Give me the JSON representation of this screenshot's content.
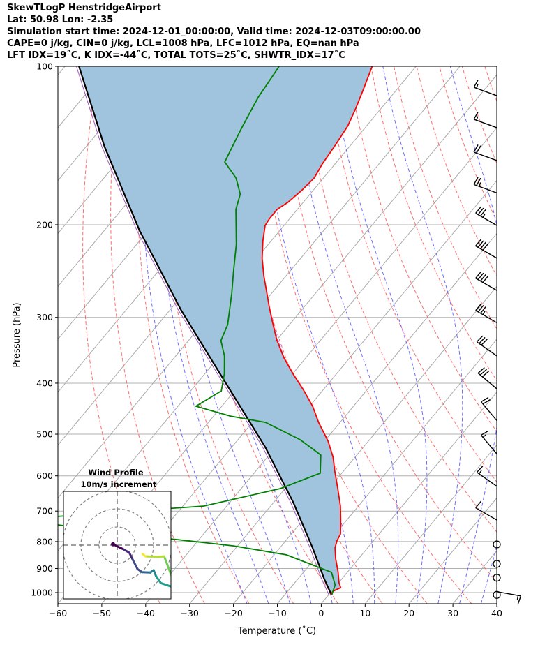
{
  "header": {
    "line1": "SkewTLogP HenstridgeAirport",
    "line2": "Lat: 50.98   Lon: -2.35",
    "line3": "Simulation start time: 2024-12-01_00:00:00, Valid time: 2024-12-03T09:00:00.00",
    "line4": "CAPE=0 j/kg, CIN=0 j/kg, LCL=1008 hPa, LFC=1012 hPa, EQ=nan hPa",
    "line5": "LFT IDX=19˚C, K IDX=-44˚C, TOTAL TOTS=25˚C, SHWTR_IDX=17˚C"
  },
  "chart_data": {
    "type": "line",
    "title": "SkewTLogP HenstridgeAirport",
    "xlabel": "Temperature (˚C)",
    "ylabel": "Pressure (hPa)",
    "xlim": [
      -60,
      40
    ],
    "ylim": [
      1050,
      100
    ],
    "x_ticks": [
      "−60",
      "−50",
      "−40",
      "−30",
      "−20",
      "−10",
      "0",
      "10",
      "20",
      "30",
      "40"
    ],
    "x_tick_values": [
      -60,
      -50,
      -40,
      -30,
      -20,
      -10,
      0,
      10,
      20,
      30,
      40
    ],
    "y_ticks": [
      "100",
      "200",
      "300",
      "400",
      "500",
      "600",
      "700",
      "800",
      "900",
      "1000"
    ],
    "y_tick_values": [
      100,
      200,
      300,
      400,
      500,
      600,
      700,
      800,
      900,
      1000
    ],
    "grid": true,
    "colors": {
      "temperature": "#ff0000",
      "dewpoint": "#008000",
      "parcel": "#000000",
      "cape_fill": "#a0c4de",
      "isotherm": "#aaaaaa",
      "dry_adiabat": "#ff5555",
      "moist_adiabat": "#5555ff"
    },
    "background_lines": {
      "isotherms_c": {
        "start": -200,
        "stop": 40,
        "step": 10
      },
      "dry_adiabats_theta_c": {
        "start": -40,
        "stop": 200,
        "step": 10
      },
      "moist_adiabats_t1000_c": {
        "start": -20,
        "stop": 40,
        "step": 5
      }
    },
    "series": [
      {
        "name": "Temperature",
        "p": [
          100,
          111.3,
          120.1,
          129.7,
          141.2,
          153.4,
          163,
          172.2,
          181.4,
          187,
          194.6,
          200.6,
          214.6,
          231.5,
          250,
          269.8,
          286.9,
          304.9,
          331.1,
          357.4,
          383.4,
          411.3,
          442.5,
          474.8,
          515.4,
          553.1,
          587.6,
          634.5,
          684.7,
          727.8,
          773.8,
          798,
          822.6,
          861,
          915.1,
          958.2,
          978.8,
          993.8,
          1009.2
        ],
        "t": [
          -90,
          -87.5,
          -85.8,
          -84.3,
          -83.5,
          -82.9,
          -82.1,
          -82.6,
          -83.5,
          -84.6,
          -84.6,
          -84.3,
          -81.9,
          -78.8,
          -75.1,
          -71.1,
          -67.9,
          -64.6,
          -60,
          -55.1,
          -50,
          -44.6,
          -39.3,
          -34.9,
          -29.2,
          -25,
          -22,
          -18,
          -14.1,
          -11.4,
          -8.8,
          -8.3,
          -7.4,
          -5.3,
          -2.1,
          0.1,
          1.4,
          0.3,
          0.4
        ]
      },
      {
        "name": "Dewpoint",
        "p": [
          100,
          114.7,
          131.6,
          152,
          163,
          174.9,
          187,
          217.9,
          246.1,
          269.8,
          309.6,
          332.1,
          355.1,
          383.4,
          413.8,
          442.5,
          461.9,
          474.8,
          512.3,
          548,
          593.1,
          634.5,
          684.7,
          716.7,
          730,
          743.6,
          790.6,
          815.2,
          847.6,
          915.1,
          967,
          1009.2
        ],
        "t": [
          -111.2,
          -110.1,
          -108,
          -105.5,
          -99.9,
          -95.9,
          -94,
          -87.3,
          -82.7,
          -79.1,
          -74.1,
          -72.6,
          -68.9,
          -65.6,
          -63,
          -65.9,
          -56.2,
          -47,
          -35.8,
          -28.2,
          -24.9,
          -31.1,
          -45.2,
          -76.5,
          -110,
          -74.9,
          -46.5,
          -30.9,
          -17.2,
          -3.6,
          -0.4,
          0.7
        ]
      },
      {
        "name": "Parcel",
        "p": [
          100,
          142.1,
          205,
          291.2,
          401.3,
          528.2,
          674.4,
          822.6,
          943.6,
          1009.2
        ],
        "t": [
          -156.8,
          -135.8,
          -112,
          -87.3,
          -63.2,
          -42.5,
          -25.5,
          -12.5,
          -3.9,
          0.6
        ]
      }
    ],
    "wind_barbs": [
      {
        "p": 113.7,
        "dir": 290,
        "spd": 15
      },
      {
        "p": 130.8,
        "dir": 290,
        "spd": 15
      },
      {
        "p": 151,
        "dir": 290,
        "spd": 20
      },
      {
        "p": 174,
        "dir": 290,
        "spd": 25
      },
      {
        "p": 200.6,
        "dir": 300,
        "spd": 35
      },
      {
        "p": 231.5,
        "dir": 300,
        "spd": 40
      },
      {
        "p": 266.6,
        "dir": 300,
        "spd": 40
      },
      {
        "p": 307,
        "dir": 300,
        "spd": 35
      },
      {
        "p": 355,
        "dir": 305,
        "spd": 30
      },
      {
        "p": 410,
        "dir": 310,
        "spd": 30
      },
      {
        "p": 471,
        "dir": 320,
        "spd": 20
      },
      {
        "p": 545,
        "dir": 320,
        "spd": 15
      },
      {
        "p": 628,
        "dir": 305,
        "spd": 15
      },
      {
        "p": 728,
        "dir": 300,
        "spd": 10
      },
      {
        "p": 810,
        "dir": 0,
        "spd": 0
      },
      {
        "p": 882,
        "dir": 0,
        "spd": 0
      },
      {
        "p": 937,
        "dir": 0,
        "spd": 0
      },
      {
        "p": 1010,
        "dir": 0,
        "spd": 0
      },
      {
        "p": 996,
        "dir": 100,
        "spd": 15
      }
    ],
    "hodograph": {
      "title_line1": "Wind Profile",
      "title_line2": "10m/s increment",
      "rings_ms": [
        10,
        20,
        30
      ],
      "u": [
        -2.3,
        0.3,
        3.5,
        6.7,
        8.6,
        11.2,
        13.7,
        18.2,
        20.1,
        21.4,
        24,
        29.7,
        35.5,
        29.7,
        25.9,
        22.7,
        15.6,
        14
      ],
      "v": [
        0.5,
        -0.8,
        -2.3,
        -4.2,
        -8.1,
        -13.2,
        -14.9,
        -15.1,
        -13.8,
        -17.1,
        -20.9,
        -22.8,
        -20.3,
        -16.4,
        -6.2,
        -6.4,
        -6.2,
        -4.9
      ]
    }
  }
}
